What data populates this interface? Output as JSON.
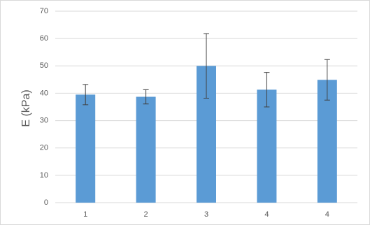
{
  "chart_data": {
    "type": "bar",
    "y_label": "E (kPa)",
    "categories": [
      "1",
      "2",
      "3",
      "4",
      "4"
    ],
    "values": [
      39.5,
      38.7,
      50,
      41.3,
      44.9
    ],
    "errors": [
      3.7,
      2.6,
      11.8,
      6.3,
      7.4
    ],
    "color": "#5b9bd5",
    "ylim": [
      0,
      70
    ],
    "yticks": [
      0,
      10,
      20,
      30,
      40,
      50,
      60,
      70
    ],
    "grid": true
  }
}
